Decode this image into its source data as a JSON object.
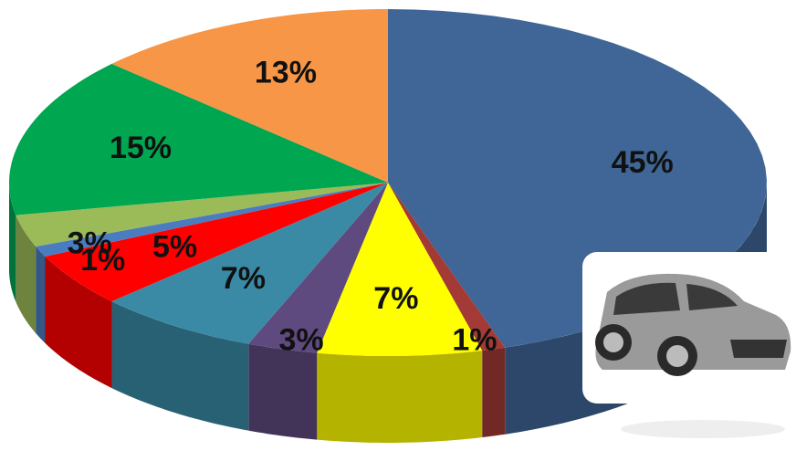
{
  "chart_data": {
    "type": "pie",
    "values": [
      45,
      1,
      7,
      3,
      7,
      5,
      1,
      3,
      15,
      13
    ],
    "value_labels": [
      "45%",
      "1%",
      "7%",
      "3%",
      "7%",
      "5%",
      "1%",
      "3%",
      "15%",
      "13%"
    ],
    "colors": [
      "#3f6696",
      "#a33a35",
      "#ffff00",
      "#5e4a7e",
      "#3a8aa6",
      "#ff0000",
      "#4a7cc0",
      "#9bbb59",
      "#00a650",
      "#f79646"
    ]
  }
}
